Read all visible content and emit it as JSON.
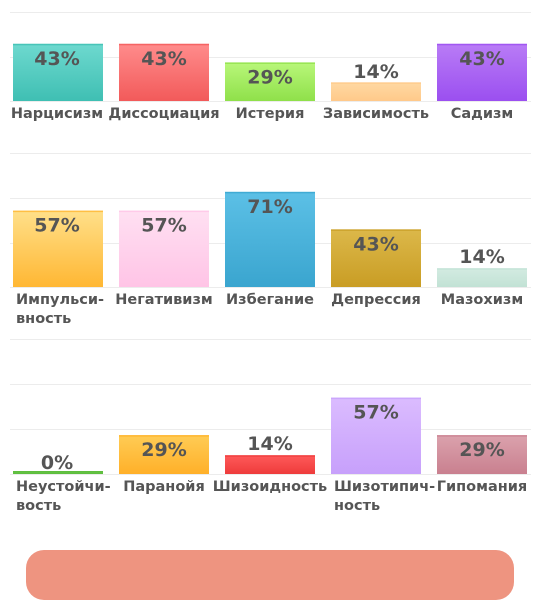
{
  "colors": {
    "text": "#555555",
    "grid": "#ececec",
    "button": "#ee9480"
  },
  "chart_data": [
    {
      "type": "bar",
      "ylim": [
        0,
        100
      ],
      "grid": true,
      "categories": [
        [
          "Нарцисизм"
        ],
        [
          "Диссоциация"
        ],
        [
          "Истерия"
        ],
        [
          "Зависимость"
        ],
        [
          "Садизм"
        ]
      ],
      "values": [
        43,
        43,
        29,
        14,
        43
      ],
      "value_labels": [
        "43%",
        "43%",
        "29%",
        "14%",
        "43%"
      ],
      "colors": [
        [
          "#6ed9cf",
          "#3fbfb3"
        ],
        [
          "#ff8c8c",
          "#f25a5a"
        ],
        [
          "#b9f77a",
          "#8fe04a"
        ],
        [
          "#ffd9a3",
          "#ffc98a"
        ],
        [
          "#b97cf6",
          "#9b4ff0"
        ]
      ]
    },
    {
      "type": "bar",
      "ylim": [
        0,
        100
      ],
      "grid": true,
      "categories": [
        [
          "Импульси-",
          "вность"
        ],
        [
          "Негативизм"
        ],
        [
          "Избегание"
        ],
        [
          "Депрессия"
        ],
        [
          "Мазохизм"
        ]
      ],
      "values": [
        57,
        57,
        71,
        43,
        14
      ],
      "value_labels": [
        "57%",
        "57%",
        "71%",
        "43%",
        "14%"
      ],
      "colors": [
        [
          "#ffe08a",
          "#ffb733"
        ],
        [
          "#ffe0f2",
          "#ffc4e6"
        ],
        [
          "#5cc0e6",
          "#3aa5cf"
        ],
        [
          "#dcb84a",
          "#c99d24"
        ],
        [
          "#d3ebe1",
          "#c2e2d5"
        ]
      ]
    },
    {
      "type": "bar",
      "ylim": [
        0,
        100
      ],
      "grid": true,
      "categories": [
        [
          "Неустойчи-",
          "вость"
        ],
        [
          "Паранойя"
        ],
        [
          "Шизоидность"
        ],
        [
          "Шизотипич-",
          "ность"
        ],
        [
          "Гипомания"
        ]
      ],
      "values": [
        0,
        29,
        14,
        57,
        29
      ],
      "value_labels": [
        "0%",
        "29%",
        "14%",
        "57%",
        "29%"
      ],
      "colors": [
        [
          "#7ed957",
          "#58b83a"
        ],
        [
          "#ffcc55",
          "#ffb029"
        ],
        [
          "#ff5a5a",
          "#ee3b3b"
        ],
        [
          "#dbbcff",
          "#c7a0fb"
        ],
        [
          "#dba2ad",
          "#c9808f"
        ]
      ]
    }
  ]
}
